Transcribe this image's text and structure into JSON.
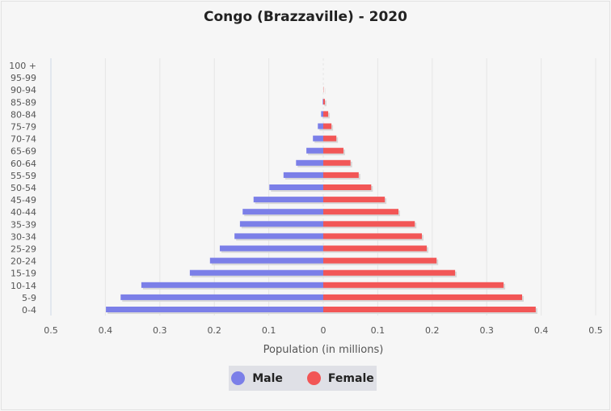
{
  "chart_data": {
    "type": "bar",
    "orientation": "horizontal-pyramid",
    "title": "Congo (Brazzaville) - 2020",
    "xlabel": "Population (in millions)",
    "ylabel": "",
    "xlim": [
      -0.5,
      0.5
    ],
    "x_ticks": [
      "0.5",
      "0.4",
      "0.3",
      "0.2",
      "0.1",
      "0",
      "0.1",
      "0.2",
      "0.3",
      "0.4",
      "0.5"
    ],
    "grid": true,
    "legend_position": "bottom",
    "categories": [
      "100 +",
      "95-99",
      "90-94",
      "85-89",
      "80-84",
      "75-79",
      "70-74",
      "65-69",
      "60-64",
      "55-59",
      "50-54",
      "45-49",
      "40-44",
      "35-39",
      "30-34",
      "25-29",
      "20-24",
      "15-19",
      "10-14",
      "5-9",
      "0-4"
    ],
    "series": [
      {
        "name": "Male",
        "color": "#7b7fe8",
        "values": [
          0,
          0,
          0,
          0.001,
          0.004,
          0.01,
          0.019,
          0.031,
          0.05,
          0.073,
          0.099,
          0.128,
          0.148,
          0.153,
          0.163,
          0.19,
          0.208,
          0.245,
          0.334,
          0.372,
          0.399
        ]
      },
      {
        "name": "Female",
        "color": "#f25656",
        "values": [
          0,
          0,
          0.0005,
          0.003,
          0.009,
          0.015,
          0.024,
          0.037,
          0.05,
          0.065,
          0.088,
          0.113,
          0.138,
          0.168,
          0.181,
          0.19,
          0.208,
          0.242,
          0.331,
          0.365,
          0.39
        ]
      }
    ]
  }
}
